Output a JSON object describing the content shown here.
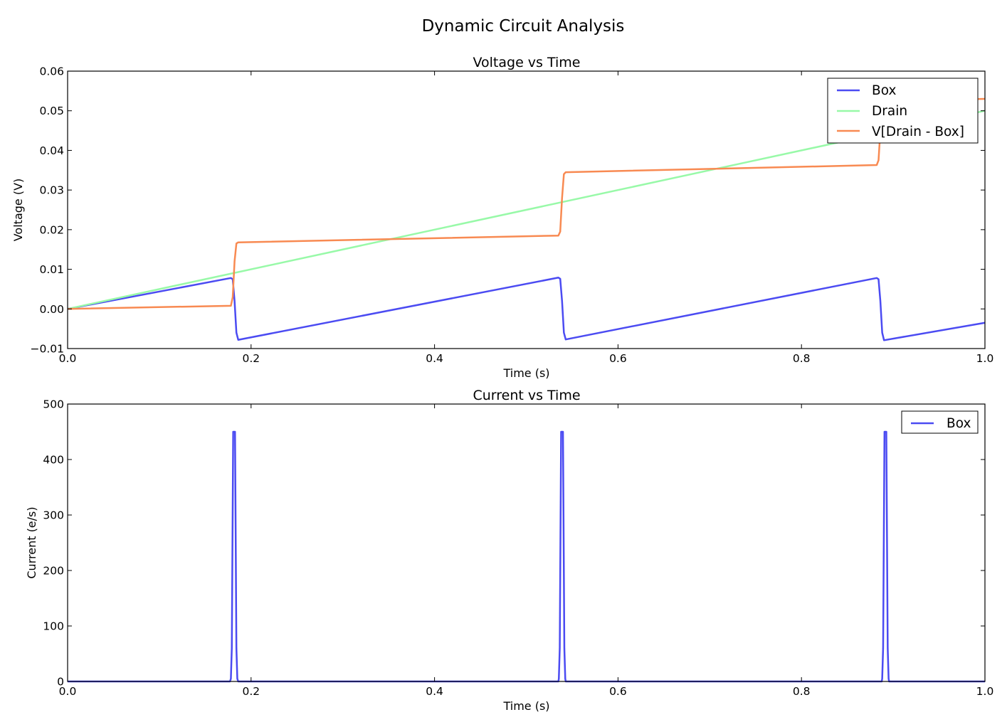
{
  "figure": {
    "suptitle": "Dynamic Circuit Analysis"
  },
  "chart_data": [
    {
      "type": "line",
      "title": "Voltage vs Time",
      "xlabel": "Time (s)",
      "ylabel": "Voltage (V)",
      "xlim": [
        0.0,
        1.0
      ],
      "ylim": [
        -0.01,
        0.06
      ],
      "xticks": [
        0.0,
        0.2,
        0.4,
        0.6,
        0.8,
        1.0
      ],
      "xtick_labels": [
        "0.0",
        "0.2",
        "0.4",
        "0.6",
        "0.8",
        "1.0"
      ],
      "yticks": [
        -0.01,
        0.0,
        0.01,
        0.02,
        0.03,
        0.04,
        0.05,
        0.06
      ],
      "ytick_labels": [
        "−0.01",
        "0.00",
        "0.01",
        "0.02",
        "0.03",
        "0.04",
        "0.05",
        "0.06"
      ],
      "grid": false,
      "legend": "top-right",
      "series": [
        {
          "name": "Box",
          "color": "#4b4bf2",
          "x": [
            0.0,
            0.178,
            0.18,
            0.182,
            0.184,
            0.186,
            0.535,
            0.537,
            0.539,
            0.541,
            0.543,
            0.882,
            0.884,
            0.886,
            0.888,
            0.89,
            1.0
          ],
          "y": [
            0.0,
            0.0078,
            0.0075,
            0.002,
            -0.006,
            -0.0078,
            0.0079,
            0.0076,
            0.002,
            -0.006,
            -0.0077,
            0.0078,
            0.0075,
            0.002,
            -0.006,
            -0.0079,
            -0.0035
          ]
        },
        {
          "name": "Drain",
          "color": "#98f9a8",
          "x": [
            0.0,
            1.0
          ],
          "y": [
            0.0,
            0.05
          ]
        },
        {
          "name": "V[Drain - Box]",
          "color": "#f88a52",
          "x": [
            0.0,
            0.178,
            0.18,
            0.182,
            0.184,
            0.186,
            0.535,
            0.537,
            0.539,
            0.541,
            0.543,
            0.882,
            0.884,
            0.886,
            0.888,
            0.89,
            1.0
          ],
          "y": [
            0.0,
            0.0008,
            0.003,
            0.012,
            0.0165,
            0.0168,
            0.0185,
            0.0195,
            0.028,
            0.034,
            0.0345,
            0.0363,
            0.0375,
            0.045,
            0.052,
            0.0525,
            0.053
          ]
        }
      ]
    },
    {
      "type": "line",
      "title": "Current vs Time",
      "xlabel": "Time (s)",
      "ylabel": "Current (e/s)",
      "xlim": [
        0.0,
        1.0
      ],
      "ylim": [
        0,
        500
      ],
      "xticks": [
        0.0,
        0.2,
        0.4,
        0.6,
        0.8,
        1.0
      ],
      "xtick_labels": [
        "0.0",
        "0.2",
        "0.4",
        "0.6",
        "0.8",
        "1.0"
      ],
      "yticks": [
        0,
        100,
        200,
        300,
        400,
        500
      ],
      "ytick_labels": [
        "0",
        "100",
        "200",
        "300",
        "400",
        "500"
      ],
      "grid": false,
      "legend": "top-right",
      "series": [
        {
          "name": "Box",
          "color": "#4b4bf2",
          "x": [
            0.0,
            0.177,
            0.178,
            0.179,
            0.1805,
            0.1825,
            0.184,
            0.185,
            0.186,
            0.535,
            0.5355,
            0.5365,
            0.538,
            0.54,
            0.5415,
            0.5425,
            0.543,
            0.8875,
            0.888,
            0.889,
            0.8905,
            0.8925,
            0.894,
            0.895,
            0.8955,
            1.0
          ],
          "y": [
            0,
            0,
            5,
            60,
            450,
            450,
            60,
            5,
            0,
            0,
            5,
            60,
            450,
            450,
            60,
            5,
            0,
            0,
            5,
            60,
            450,
            450,
            60,
            5,
            0,
            0
          ]
        }
      ]
    }
  ]
}
